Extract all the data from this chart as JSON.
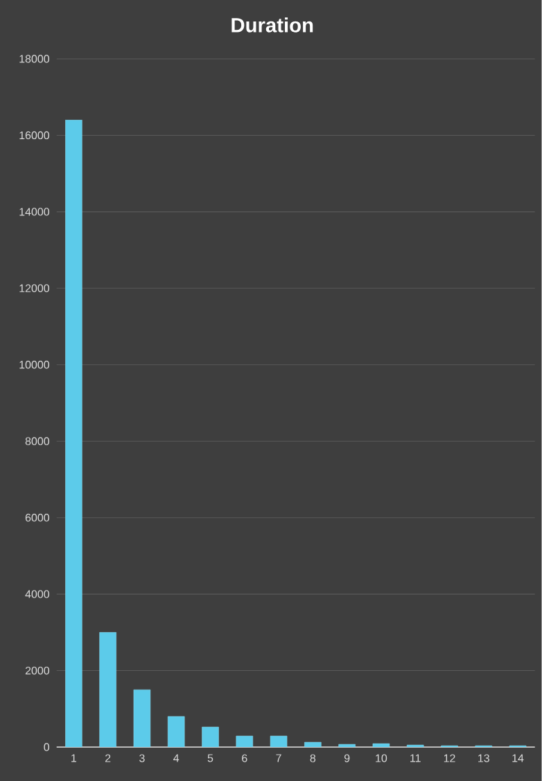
{
  "chart_data": {
    "type": "bar",
    "title": "Duration",
    "categories": [
      "1",
      "2",
      "3",
      "4",
      "5",
      "6",
      "7",
      "8",
      "9",
      "10",
      "11",
      "12",
      "13",
      "14"
    ],
    "values": [
      16400,
      3000,
      1500,
      800,
      525,
      290,
      290,
      127,
      72,
      90,
      54,
      36,
      36,
      36
    ],
    "color": "#5ccbea",
    "ylim": [
      0,
      18000
    ],
    "yticks": [
      0,
      2000,
      4000,
      6000,
      8000,
      10000,
      12000,
      14000,
      16000,
      18000
    ],
    "grid": "y"
  }
}
